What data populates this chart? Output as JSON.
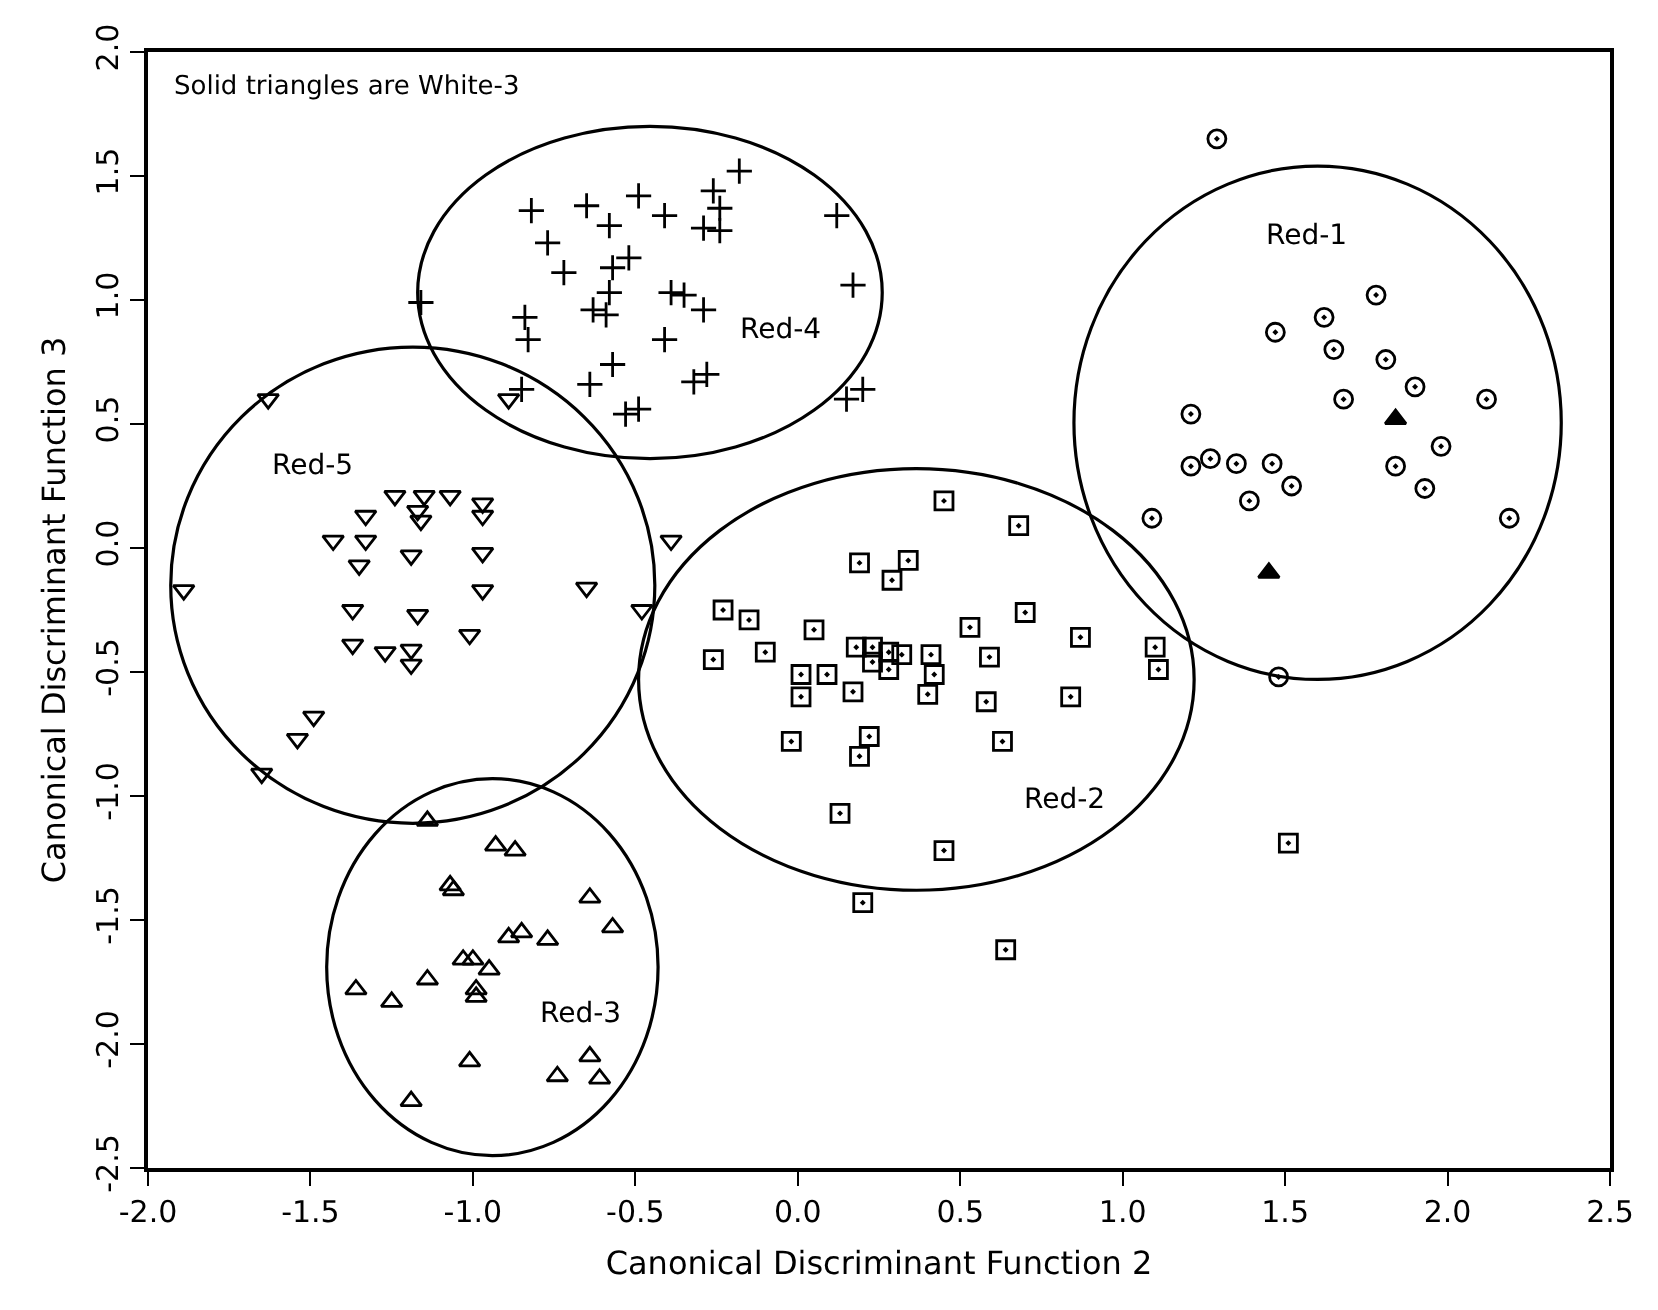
{
  "chart_data": {
    "type": "scatter",
    "xlabel": "Canonical Discriminant Function 2",
    "ylabel": "Canonical Discriminant Function 3",
    "xlim": [
      -2.0,
      2.5
    ],
    "xticks": [
      {
        "value": -2.0,
        "label": "-2.0"
      },
      -1.5,
      {
        "value": -1.0,
        "label": "-1.0"
      },
      -0.5,
      {
        "value": 0.0,
        "label": "0.0"
      },
      0.5,
      {
        "value": 1.0,
        "label": "1.0"
      },
      1.5,
      {
        "value": 2.0,
        "label": "2.0"
      },
      2.5
    ],
    "ylim": [
      -2.5,
      2.0
    ],
    "yticks": [
      -2.5,
      {
        "value": -2.0,
        "label": "-2.0"
      },
      -1.5,
      {
        "value": -1.0,
        "label": "-1.0"
      },
      -0.5,
      {
        "value": 0.0,
        "label": "0.0"
      },
      0.5,
      {
        "value": 1.0,
        "label": "1.0"
      },
      1.5,
      {
        "value": 2.0,
        "label": "2.0"
      }
    ],
    "grid": false,
    "annotations": [
      "Solid triangles are White-3",
      "Red-1",
      "Red-4",
      "Red-5",
      "Red-2",
      "Red-3"
    ],
    "series": [
      {
        "marker": "circle-open-dot",
        "color": "#000000",
        "x": [
          1.29,
          1.78,
          1.62,
          1.47,
          1.65,
          1.81,
          1.9,
          1.68,
          2.12,
          1.21,
          1.98,
          1.21,
          1.27,
          1.35,
          1.46,
          1.52,
          1.84,
          1.39,
          1.93,
          1.09,
          2.19,
          1.48
        ],
        "values": [
          1.65,
          1.02,
          0.93,
          0.87,
          0.8,
          0.76,
          0.65,
          0.6,
          0.6,
          0.54,
          0.41,
          0.33,
          0.36,
          0.34,
          0.34,
          0.25,
          0.33,
          0.19,
          0.24,
          0.12,
          0.12,
          -0.52
        ]
      },
      {
        "marker": "square-open-dot",
        "color": "#000000",
        "x": [
          0.45,
          0.68,
          0.19,
          0.34,
          0.29,
          -0.23,
          -0.15,
          0.05,
          -0.26,
          -0.1,
          0.18,
          0.23,
          0.28,
          0.32,
          0.23,
          0.28,
          0.41,
          0.42,
          0.53,
          0.7,
          0.59,
          0.87,
          1.1,
          1.11,
          0.01,
          0.09,
          0.01,
          0.17,
          0.4,
          0.58,
          0.84,
          -0.02,
          0.22,
          0.19,
          0.63,
          0.13,
          0.45,
          0.2,
          0.64,
          1.51
        ],
        "values": [
          0.19,
          0.09,
          -0.06,
          -0.05,
          -0.13,
          -0.25,
          -0.29,
          -0.33,
          -0.45,
          -0.42,
          -0.4,
          -0.4,
          -0.42,
          -0.43,
          -0.46,
          -0.49,
          -0.43,
          -0.51,
          -0.32,
          -0.26,
          -0.44,
          -0.36,
          -0.4,
          -0.49,
          -0.51,
          -0.51,
          -0.6,
          -0.58,
          -0.59,
          -0.62,
          -0.6,
          -0.78,
          -0.76,
          -0.84,
          -0.78,
          -1.07,
          -1.22,
          -1.43,
          -1.62,
          -1.19
        ]
      },
      {
        "marker": "triangle-up-open",
        "color": "#000000",
        "x": [
          -1.14,
          -0.93,
          -0.87,
          -1.07,
          -1.06,
          -0.64,
          -0.57,
          -0.89,
          -0.85,
          -0.77,
          -1.03,
          -1.0,
          -0.95,
          -1.14,
          -1.36,
          -1.25,
          -0.99,
          -0.99,
          -1.01,
          -1.19,
          -0.74,
          -0.64,
          -0.61
        ],
        "values": [
          -1.1,
          -1.2,
          -1.22,
          -1.36,
          -1.38,
          -1.41,
          -1.53,
          -1.57,
          -1.55,
          -1.58,
          -1.66,
          -1.66,
          -1.7,
          -1.74,
          -1.78,
          -1.83,
          -1.78,
          -1.81,
          -2.07,
          -2.23,
          -2.13,
          -2.05,
          -2.14
        ]
      },
      {
        "marker": "cross-thin",
        "color": "#000000",
        "x": [
          -0.82,
          -0.65,
          -0.58,
          -0.49,
          -0.41,
          -0.26,
          -0.29,
          -0.24,
          -0.24,
          -0.18,
          0.12,
          0.17,
          0.15,
          0.2,
          -0.77,
          -0.72,
          -0.57,
          -0.52,
          -0.58,
          -0.63,
          -0.59,
          -0.39,
          -0.35,
          -0.29,
          -0.41,
          -0.84,
          -0.83,
          -0.57,
          -0.32,
          -0.28,
          -0.64,
          -0.85,
          -0.53,
          -0.49,
          -1.16
        ],
        "values": [
          1.36,
          1.38,
          1.3,
          1.42,
          1.34,
          1.44,
          1.29,
          1.37,
          1.28,
          1.52,
          1.34,
          1.06,
          0.6,
          0.64,
          1.23,
          1.11,
          1.13,
          1.17,
          1.03,
          0.96,
          0.94,
          1.03,
          1.02,
          0.96,
          0.84,
          0.93,
          0.84,
          0.74,
          0.67,
          0.7,
          0.66,
          0.64,
          0.54,
          0.56,
          0.99
        ]
      },
      {
        "marker": "triangle-down-open",
        "color": "#000000",
        "x": [
          -1.63,
          -1.89,
          -0.89,
          -1.24,
          -1.15,
          -1.07,
          -0.97,
          -1.33,
          -1.17,
          -1.16,
          -0.97,
          -1.43,
          -1.33,
          -1.19,
          -1.35,
          -0.97,
          -0.97,
          -0.65,
          -0.39,
          -0.48,
          -1.37,
          -1.17,
          -1.01,
          -1.37,
          -1.27,
          -1.19,
          -1.19,
          -1.49,
          -1.54,
          -1.65
        ],
        "values": [
          0.6,
          -0.17,
          0.6,
          0.21,
          0.21,
          0.21,
          0.18,
          0.13,
          0.15,
          0.11,
          0.13,
          0.03,
          0.03,
          -0.03,
          -0.07,
          -0.02,
          -0.17,
          -0.16,
          0.03,
          -0.25,
          -0.25,
          -0.27,
          -0.35,
          -0.39,
          -0.42,
          -0.41,
          -0.47,
          -0.68,
          -0.77,
          -0.91
        ]
      },
      {
        "marker": "triangle-up",
        "color": "#000000",
        "x": [
          1.84,
          1.45
        ],
        "values": [
          0.52,
          -0.1
        ]
      }
    ]
  }
}
